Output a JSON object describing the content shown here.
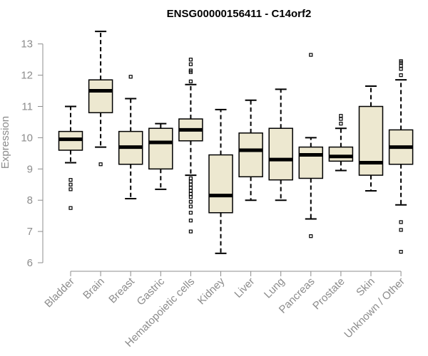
{
  "chart_data": {
    "type": "boxplot",
    "title": "ENSG00000156411 - C14orf2",
    "ylabel": "Expression",
    "xlabel": "",
    "ylim": [
      6,
      13.5
    ],
    "yticks": [
      6,
      7,
      8,
      9,
      10,
      11,
      12,
      13
    ],
    "box_fill": "#ede8d0",
    "box_stroke": "#000000",
    "axis_color": "#8c8c8c",
    "categories": [
      "Bladder",
      "Brain",
      "Breast",
      "Gastric",
      "Hematopoietic cells",
      "Kidney",
      "Liver",
      "Lung",
      "Pancreas",
      "Prostate",
      "Skin",
      "Unknown / Other"
    ],
    "boxes": [
      {
        "whisker_low": 9.2,
        "q1": 9.6,
        "median": 9.95,
        "q3": 10.2,
        "whisker_high": 11.0,
        "outliers": [
          7.75,
          8.35,
          8.5,
          8.65
        ]
      },
      {
        "whisker_low": 9.7,
        "q1": 10.8,
        "median": 11.5,
        "q3": 11.85,
        "whisker_high": 13.4,
        "outliers": [
          9.15
        ]
      },
      {
        "whisker_low": 8.05,
        "q1": 9.15,
        "median": 9.7,
        "q3": 10.2,
        "whisker_high": 11.25,
        "outliers": [
          11.95
        ]
      },
      {
        "whisker_low": 8.35,
        "q1": 9.0,
        "median": 9.85,
        "q3": 10.3,
        "whisker_high": 10.45,
        "outliers": []
      },
      {
        "whisker_low": 8.8,
        "q1": 9.9,
        "median": 10.25,
        "q3": 10.6,
        "whisker_high": 11.7,
        "outliers": [
          7.0,
          7.35,
          7.6,
          7.8,
          7.95,
          8.1,
          8.2,
          8.3,
          8.4,
          8.5,
          8.6,
          8.7,
          11.8,
          12.1,
          12.15,
          12.35,
          12.5
        ]
      },
      {
        "whisker_low": 6.3,
        "q1": 7.6,
        "median": 8.15,
        "q3": 9.45,
        "whisker_high": 10.9,
        "outliers": []
      },
      {
        "whisker_low": 8.0,
        "q1": 8.75,
        "median": 9.6,
        "q3": 10.15,
        "whisker_high": 11.2,
        "outliers": []
      },
      {
        "whisker_low": 8.0,
        "q1": 8.65,
        "median": 9.3,
        "q3": 10.3,
        "whisker_high": 11.55,
        "outliers": []
      },
      {
        "whisker_low": 7.4,
        "q1": 8.7,
        "median": 9.45,
        "q3": 9.7,
        "whisker_high": 10.0,
        "outliers": [
          6.85,
          12.65
        ]
      },
      {
        "whisker_low": 8.95,
        "q1": 9.25,
        "median": 9.4,
        "q3": 9.7,
        "whisker_high": 10.3,
        "outliers": [
          10.45,
          10.6,
          10.7
        ]
      },
      {
        "whisker_low": 8.3,
        "q1": 8.8,
        "median": 9.2,
        "q3": 11.0,
        "whisker_high": 11.65,
        "outliers": []
      },
      {
        "whisker_low": 7.85,
        "q1": 9.15,
        "median": 9.7,
        "q3": 10.25,
        "whisker_high": 11.85,
        "outliers": [
          6.35,
          7.05,
          7.3,
          12.0,
          12.2,
          12.3,
          12.4,
          12.45
        ]
      }
    ]
  }
}
